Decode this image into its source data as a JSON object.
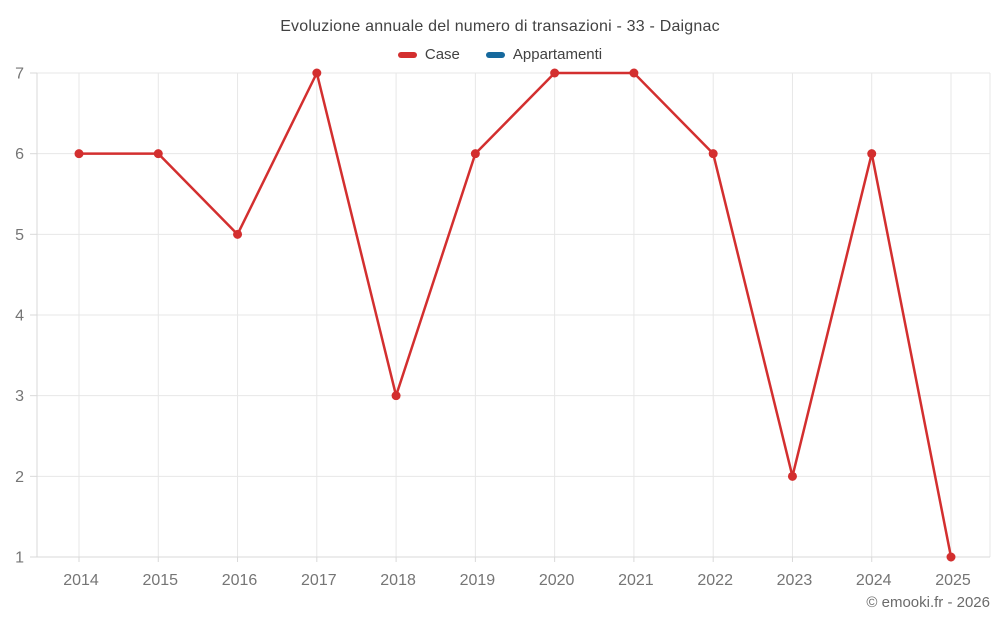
{
  "title": "Evoluzione annuale del numero di transazioni - 33 - Daignac",
  "legend": {
    "items": [
      {
        "label": "Case",
        "color": "#d32f2f"
      },
      {
        "label": "Appartamenti",
        "color": "#16699d"
      }
    ]
  },
  "attribution": "© emooki.fr - 2026",
  "style": {
    "grid_color": "#e7e7e7",
    "axis_color": "#d9d9d9",
    "tick_label_color": "#757575",
    "text_color": "#424242"
  },
  "chart_data": {
    "type": "line",
    "title": "Evoluzione annuale del numero di transazioni - 33 - Daignac",
    "categories": [
      "2014",
      "2015",
      "2016",
      "2017",
      "2018",
      "2019",
      "2020",
      "2021",
      "2022",
      "2023",
      "2024",
      "2025"
    ],
    "series": [
      {
        "name": "Case",
        "color": "#d32f2f",
        "values": [
          6,
          6,
          5,
          7,
          3,
          6,
          7,
          7,
          6,
          2,
          6,
          1
        ]
      },
      {
        "name": "Appartamenti",
        "color": "#16699d",
        "values": []
      }
    ],
    "xlabel": "",
    "ylabel": "",
    "ylim": [
      1,
      7
    ],
    "yticks": [
      1,
      2,
      3,
      4,
      5,
      6,
      7
    ],
    "grid": true,
    "legend_position": "top",
    "attribution": "© emooki.fr - 2026"
  }
}
